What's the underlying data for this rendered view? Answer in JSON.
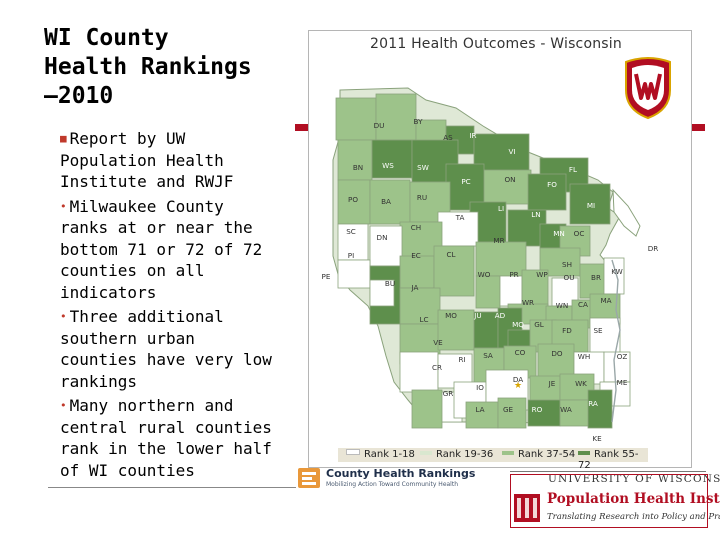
{
  "slide": {
    "title": "WI County\nHealth Rankings\n—2010",
    "bullets": [
      "Report by UW Population Health Institute and RWJF",
      "Milwaukee County ranks at or near the bottom 71 or 72 of 72 counties on all indicators",
      "Three additional southern urban counties have very low rankings",
      "Many northern and central rural counties rank in the lower half of WI counties"
    ]
  },
  "map": {
    "title": "2011 Health Outcomes - Wisconsin",
    "legend": [
      {
        "label": "Rank 1-18",
        "color": "#ffffff"
      },
      {
        "label": "Rank 19-36",
        "color": "#d9e7cf"
      },
      {
        "label": "Rank 37-54",
        "color": "#9dc38a"
      },
      {
        "label": "Rank 55-72",
        "color": "#5e8f4c"
      }
    ],
    "county_labels": [
      "DU",
      "BY",
      "AS",
      "IR",
      "VI",
      "BN",
      "WS",
      "SW",
      "FL",
      "ON",
      "PC",
      "FO",
      "PO",
      "BA",
      "RU",
      "MI",
      "LI",
      "LN",
      "TA",
      "MN",
      "OC",
      "SC",
      "CH",
      "DN",
      "DR",
      "MR",
      "PE",
      "PI",
      "SH",
      "KW",
      "EC",
      "CL",
      "WO",
      "PR",
      "WP",
      "OU",
      "BR",
      "TR",
      "BU",
      "JA",
      "WR",
      "WN",
      "CA",
      "MA",
      "LC",
      "MO",
      "JU",
      "AD",
      "MQ",
      "GL",
      "FD",
      "SE",
      "VE",
      "GR",
      "RI",
      "SA",
      "CO",
      "DO",
      "WH",
      "OZ",
      "CR",
      "IO",
      "DA",
      "JE",
      "WK",
      "ME",
      "LA",
      "GE",
      "RO",
      "WA",
      "RA",
      "KE"
    ]
  },
  "logos": {
    "chr_title": "County Health Rankings",
    "chr_sub": "Mobilizing Action Toward Community Health",
    "uw_wordmark": "UNIVERSITY OF WISCONSIN",
    "phi_name": "Population Health Institute",
    "phi_tagline": "Translating Research into Policy and Practice"
  }
}
